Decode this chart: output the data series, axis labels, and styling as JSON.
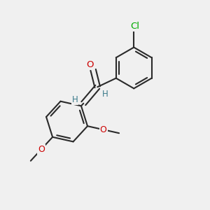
{
  "background_color": "#f0f0f0",
  "bond_color": "#2a2a2a",
  "bond_width": 1.5,
  "atom_colors": {
    "O": "#cc0000",
    "Cl": "#00aa00",
    "H": "#3a7a8a",
    "C": "#2a2a2a"
  },
  "figsize": [
    3.0,
    3.0
  ],
  "dpi": 100,
  "xlim": [
    0.0,
    1.0
  ],
  "ylim": [
    0.0,
    1.0
  ]
}
